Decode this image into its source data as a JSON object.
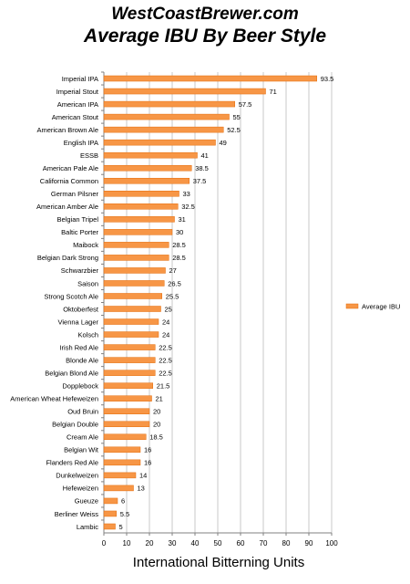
{
  "chart_data": {
    "type": "bar",
    "orientation": "horizontal",
    "title": "WestCoastBrewer.com",
    "subtitle": "Average IBU By Beer Style",
    "xlabel": "International Bitterning Units",
    "ylabel": "",
    "xlim": [
      0,
      100
    ],
    "xticks": [
      0,
      10,
      20,
      30,
      40,
      50,
      60,
      70,
      80,
      90,
      100
    ],
    "grid": true,
    "legend_position": "right",
    "colors": {
      "bar": "#f79646",
      "bar_edge": "#e46c0a",
      "grid": "#c8c8c8",
      "axis": "#808080"
    },
    "categories": [
      "Imperial IPA",
      "Imperial Stout",
      "American IPA",
      "American Stout",
      "American Brown Ale",
      "English IPA",
      "ESSB",
      "American Pale Ale",
      "California Common",
      "German Pilsner",
      "American Amber Ale",
      "Belgian Tripel",
      "Baltic Porter",
      "Maibock",
      "Belgian Dark Strong",
      "Schwarzbier",
      "Saison",
      "Strong Scotch Ale",
      "Oktoberfest",
      "Vienna Lager",
      "Kolsch",
      "Irish Red Ale",
      "Blonde Ale",
      "Belgian Blond Ale",
      "Dopplebock",
      "American Wheat Hefeweizen",
      "Oud Bruin",
      "Belgian Double",
      "Cream Ale",
      "Belgian Wit",
      "Flanders Red Ale",
      "Dunkelweizen",
      "Hefeweizen",
      "Gueuze",
      "Berliner Weiss",
      "Lambic"
    ],
    "series": [
      {
        "name": "Average IBU",
        "values": [
          93.5,
          71,
          57.5,
          55,
          52.5,
          49,
          41,
          38.5,
          37.5,
          33,
          32.5,
          31,
          30,
          28.5,
          28.5,
          27,
          26.5,
          25.5,
          25,
          24,
          24,
          22.5,
          22.5,
          22.5,
          21.5,
          21,
          20,
          20,
          18.5,
          16,
          16,
          14,
          13,
          6,
          5.5,
          5
        ]
      }
    ]
  }
}
